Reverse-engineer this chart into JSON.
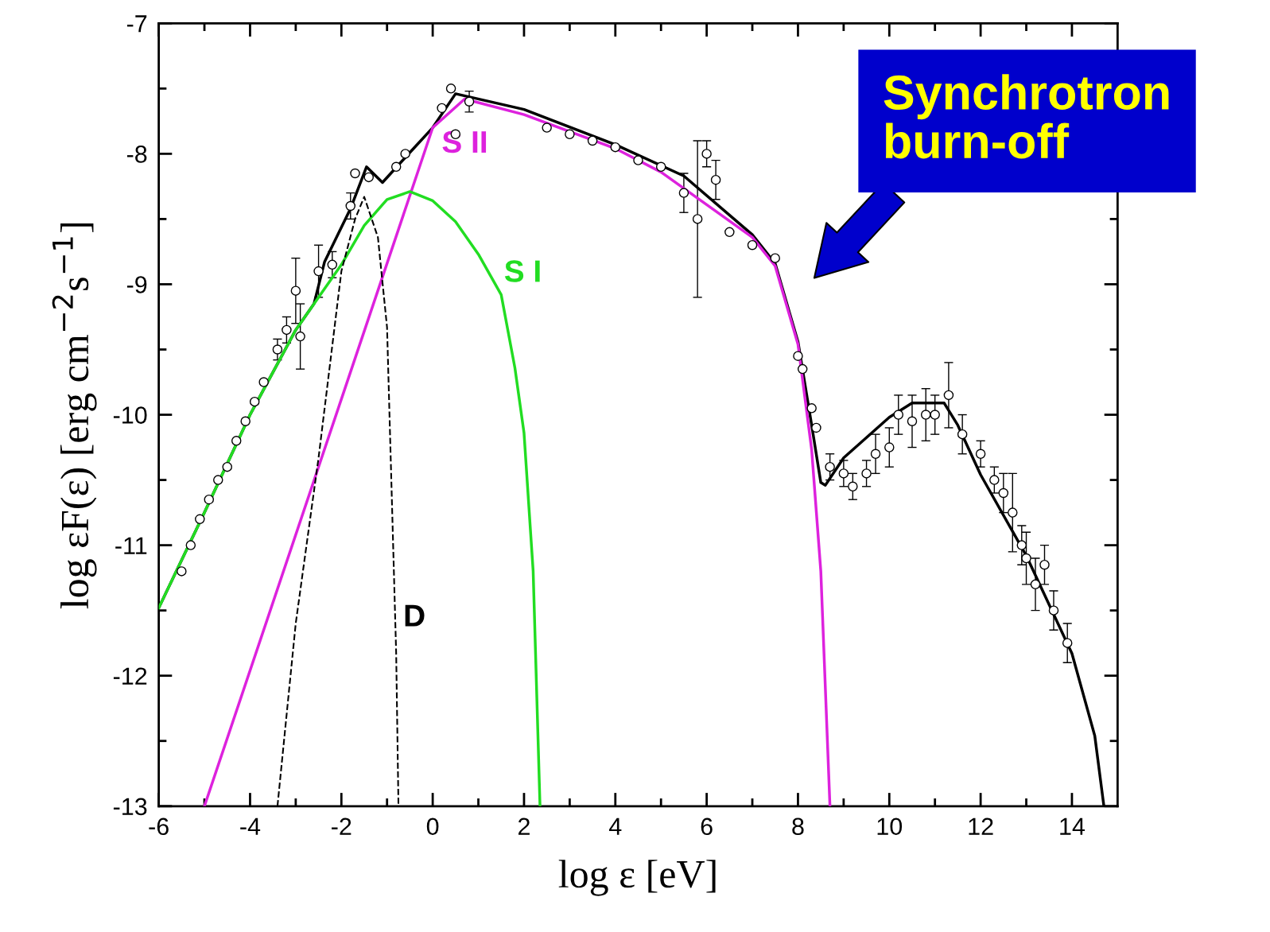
{
  "chart_data": {
    "type": "line",
    "xlabel": "log ε [eV]",
    "ylabel": "log εF(ε) [erg cm$^{−2}$s$^{−1}$]",
    "xlim": [
      -6,
      15
    ],
    "ylim": [
      -13,
      -7
    ],
    "xticks": [
      -6,
      {
        "value": -5,
        "label": null
      },
      -4,
      {
        "value": -3,
        "label": null
      },
      -2,
      {
        "value": -1,
        "label": null
      },
      0,
      {
        "value": 1,
        "label": null
      },
      2,
      {
        "value": 3,
        "label": null
      },
      4,
      {
        "value": 5,
        "label": null
      },
      6,
      {
        "value": 7,
        "label": null
      },
      8,
      {
        "value": 9,
        "label": null
      },
      10,
      {
        "value": 11,
        "label": null
      },
      12,
      {
        "value": 13,
        "label": null
      },
      14
    ],
    "yticks": [
      -13,
      {
        "value": -12.5,
        "label": null
      },
      -12,
      {
        "value": -11.5,
        "label": null
      },
      -11,
      {
        "value": -10.5,
        "label": null
      },
      -10,
      {
        "value": -9.5,
        "label": null
      },
      -9,
      {
        "value": -8.5,
        "label": null
      },
      -8,
      {
        "value": -7.5,
        "label": null
      },
      -7
    ],
    "grid": false,
    "legend": false,
    "series": [
      {
        "name": "D",
        "line_style": "dashed",
        "color": "#000000",
        "x": [
          -3.4,
          -3.0,
          -2.5,
          -2.0,
          -1.7,
          -1.5,
          -1.2,
          -1.0,
          -0.9,
          -0.8,
          -0.75
        ],
        "values": [
          -13,
          -11.6,
          -10.33,
          -8.9,
          -8.5,
          -8.33,
          -8.64,
          -9.33,
          -10.58,
          -11.83,
          -13
        ]
      },
      {
        "name": "S I",
        "line_style": "solid",
        "color": "#22dd22",
        "x": [
          -6,
          -5,
          -4,
          -3,
          -2,
          -1.5,
          -1.0,
          -0.5,
          0,
          0.5,
          1.0,
          1.5,
          1.8,
          2.0,
          2.2,
          2.35
        ],
        "values": [
          -11.48,
          -10.75,
          -10.0,
          -9.35,
          -8.85,
          -8.55,
          -8.35,
          -8.29,
          -8.36,
          -8.52,
          -8.77,
          -9.08,
          -9.64,
          -10.14,
          -11.2,
          -13
        ]
      },
      {
        "name": "S II",
        "line_style": "solid",
        "color": "#dd22dd",
        "x": [
          -5,
          -2,
          0,
          0.7,
          2,
          4,
          5,
          6,
          7,
          7.5,
          8,
          8.3,
          8.5,
          8.7
        ],
        "values": [
          -13,
          -9.88,
          -7.8,
          -7.58,
          -7.7,
          -7.96,
          -8.14,
          -8.39,
          -8.64,
          -8.86,
          -9.46,
          -10.27,
          -11.2,
          -13
        ]
      },
      {
        "line_style": "solid",
        "color": "#000000",
        "x": [
          -6,
          -5,
          -4,
          -3,
          -2.6,
          -2.37,
          -1.8,
          -1.45,
          -1.1,
          -0.5,
          0,
          0.5,
          2,
          4,
          5.5,
          7,
          7.5,
          8,
          8.3,
          8.5,
          8.6,
          9.0,
          10,
          10.5,
          11.2,
          11.5,
          12,
          13,
          14,
          14.5,
          14.7
        ],
        "values": [
          -11.48,
          -10.75,
          -10.0,
          -9.35,
          -9.15,
          -8.83,
          -8.42,
          -8.1,
          -8.22,
          -7.99,
          -7.8,
          -7.54,
          -7.66,
          -7.93,
          -8.17,
          -8.62,
          -8.84,
          -9.44,
          -10.08,
          -10.52,
          -10.54,
          -10.33,
          -10.02,
          -9.91,
          -9.91,
          -10.08,
          -10.46,
          -11.08,
          -11.83,
          -12.46,
          -13
        ]
      },
      {
        "type": "scatter",
        "marker": "circle",
        "color": "#000000",
        "x": [
          -5.5,
          -5.3,
          -5.1,
          -4.9,
          -4.7,
          -4.5,
          -4.3,
          -4.1,
          -3.9,
          -3.7,
          -3.4,
          -3.2,
          -3.0,
          -2.9,
          -2.5,
          -2.2,
          -1.8,
          -1.7,
          -1.4,
          -0.8,
          -0.6,
          0.2,
          0.4,
          0.5,
          0.8,
          2.5,
          3.0,
          3.5,
          4.0,
          4.5,
          5.0,
          5.5,
          5.8,
          6.0,
          6.2,
          6.5,
          7.0,
          7.5,
          8.0,
          8.1,
          8.3,
          8.4,
          8.7,
          9.0,
          9.2,
          9.5,
          9.7,
          10.0,
          10.2,
          10.5,
          10.8,
          11.0,
          11.3,
          11.6,
          12.0,
          12.3,
          12.5,
          12.7,
          12.9,
          13.0,
          13.2,
          13.4,
          13.6,
          13.9
        ],
        "values": [
          -11.2,
          -11.0,
          -10.8,
          -10.65,
          -10.5,
          -10.4,
          -10.2,
          -10.05,
          -9.9,
          -9.75,
          -9.5,
          -9.35,
          -9.05,
          -9.4,
          -8.9,
          -8.85,
          -8.4,
          -8.15,
          -8.18,
          -8.1,
          -8.0,
          -7.65,
          -7.5,
          -7.85,
          -7.6,
          -7.8,
          -7.85,
          -7.9,
          -7.95,
          -8.05,
          -8.1,
          -8.3,
          -8.5,
          -8.0,
          -8.2,
          -8.6,
          -8.7,
          -8.8,
          -9.55,
          -9.65,
          -9.95,
          -10.1,
          -10.4,
          -10.45,
          -10.55,
          -10.45,
          -10.3,
          -10.25,
          -10.0,
          -10.05,
          -10.0,
          -10.0,
          -9.85,
          -10.15,
          -10.3,
          -10.5,
          -10.6,
          -10.75,
          -11.0,
          -11.1,
          -11.3,
          -11.15,
          -11.5,
          -11.75
        ],
        "errors": [
          null,
          null,
          null,
          null,
          null,
          null,
          null,
          null,
          null,
          null,
          0.08,
          0.1,
          0.25,
          0.25,
          0.2,
          0.1,
          0.1,
          null,
          null,
          null,
          null,
          null,
          null,
          null,
          0.08,
          null,
          null,
          null,
          null,
          null,
          null,
          0.15,
          0.6,
          0.1,
          0.15,
          null,
          null,
          null,
          null,
          null,
          null,
          null,
          0.1,
          0.1,
          0.1,
          0.1,
          0.15,
          0.15,
          0.15,
          0.2,
          0.2,
          0.15,
          0.25,
          0.15,
          0.1,
          0.1,
          0.15,
          0.3,
          0.15,
          0.2,
          0.2,
          0.15,
          0.15,
          0.15
        ]
      }
    ],
    "annotations": [
      "Synchrotron\nburn-off"
    ]
  }
}
